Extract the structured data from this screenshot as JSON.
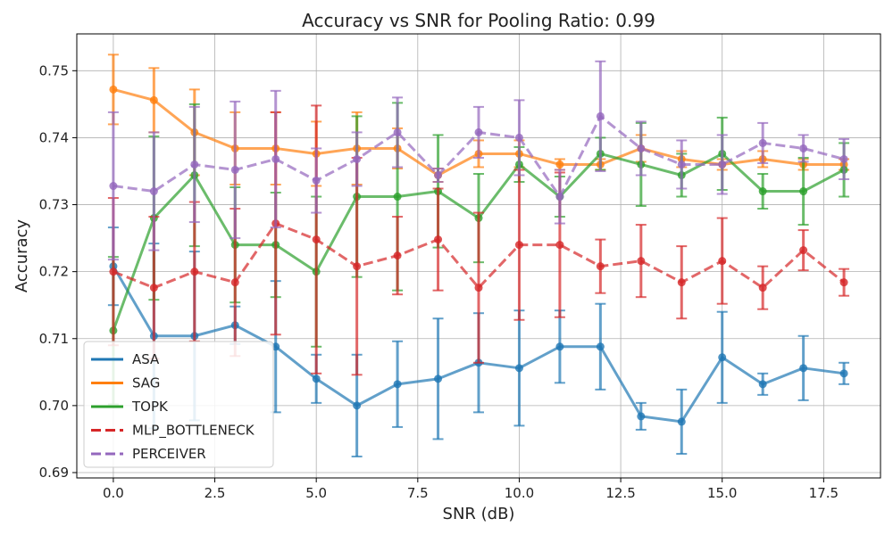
{
  "chart_data": {
    "type": "line",
    "title": "Accuracy vs SNR for Pooling Ratio: 0.99",
    "xlabel": "SNR (dB)",
    "ylabel": "Accuracy",
    "xlim": [
      -0.9,
      18.9
    ],
    "ylim": [
      0.6892,
      0.7555
    ],
    "xticks": [
      0.0,
      2.5,
      5.0,
      7.5,
      10.0,
      12.5,
      15.0,
      17.5
    ],
    "xtick_labels": [
      "0.0",
      "2.5",
      "5.0",
      "7.5",
      "10.0",
      "12.5",
      "15.0",
      "17.5"
    ],
    "yticks": [
      0.69,
      0.7,
      0.71,
      0.72,
      0.73,
      0.74,
      0.75
    ],
    "ytick_labels": [
      "0.69",
      "0.70",
      "0.71",
      "0.72",
      "0.73",
      "0.74",
      "0.75"
    ],
    "grid": true,
    "legend_position": "lower-left",
    "x": [
      0,
      1,
      2,
      3,
      4,
      5,
      6,
      7,
      8,
      9,
      10,
      11,
      12,
      13,
      14,
      15,
      16,
      17,
      18
    ],
    "series": [
      {
        "name": "ASA",
        "color": "#1f77b4",
        "dashed": false,
        "values": [
          0.7208,
          0.7104,
          0.7104,
          0.712,
          0.7088,
          0.704,
          0.7,
          0.7032,
          0.704,
          0.7064,
          0.7056,
          0.7088,
          0.7088,
          0.6984,
          0.6976,
          0.7072,
          0.7032,
          0.7056,
          0.7048
        ],
        "errors": [
          0.0058,
          0.0138,
          0.0126,
          0.0028,
          0.0098,
          0.0036,
          0.0076,
          0.0064,
          0.009,
          0.0074,
          0.0086,
          0.0054,
          0.0064,
          0.002,
          0.0048,
          0.0068,
          0.0016,
          0.0048,
          0.0016
        ]
      },
      {
        "name": "SAG",
        "color": "#ff7f0e",
        "dashed": false,
        "values": [
          0.7472,
          0.7456,
          0.7408,
          0.7384,
          0.7384,
          0.7376,
          0.7384,
          0.7384,
          0.7344,
          0.7376,
          0.7376,
          0.736,
          0.736,
          0.7384,
          0.7368,
          0.736,
          0.7368,
          0.736,
          0.736
        ],
        "errors": [
          0.0052,
          0.0048,
          0.0064,
          0.0054,
          0.0054,
          0.0048,
          0.0054,
          0.003,
          0.001,
          0.002,
          0.002,
          0.0008,
          0.0008,
          0.002,
          0.0012,
          0.0008,
          0.0012,
          0.0008,
          0.0008
        ]
      },
      {
        "name": "TOPK",
        "color": "#2ca02c",
        "dashed": false,
        "values": [
          0.7112,
          0.728,
          0.7344,
          0.724,
          0.724,
          0.72,
          0.7312,
          0.7312,
          0.732,
          0.728,
          0.736,
          0.7312,
          0.7376,
          0.736,
          0.7344,
          0.7376,
          0.732,
          0.732,
          0.7352
        ],
        "errors": [
          0.011,
          0.0122,
          0.0106,
          0.0086,
          0.0078,
          0.0112,
          0.012,
          0.014,
          0.0084,
          0.0066,
          0.0026,
          0.003,
          0.0024,
          0.0062,
          0.0032,
          0.0054,
          0.0026,
          0.005,
          0.004
        ]
      },
      {
        "name": "MLP_BOTTLENECK",
        "color": "#d62728",
        "dashed": true,
        "values": [
          0.72,
          0.7176,
          0.72,
          0.7184,
          0.7272,
          0.7248,
          0.7208,
          0.7224,
          0.7248,
          0.7176,
          0.724,
          0.724,
          0.7208,
          0.7216,
          0.7184,
          0.7216,
          0.7176,
          0.7232,
          0.7184
        ],
        "errors": [
          0.011,
          0.0106,
          0.0104,
          0.011,
          0.0166,
          0.02,
          0.0162,
          0.0058,
          0.0076,
          0.0112,
          0.0112,
          0.0108,
          0.004,
          0.0054,
          0.0054,
          0.0064,
          0.0032,
          0.003,
          0.002
        ]
      },
      {
        "name": "PERCEIVER",
        "color": "#9467bd",
        "dashed": true,
        "values": [
          0.7328,
          0.732,
          0.736,
          0.7352,
          0.7368,
          0.7336,
          0.7368,
          0.7408,
          0.7344,
          0.7408,
          0.74,
          0.7312,
          0.7432,
          0.7384,
          0.736,
          0.736,
          0.7392,
          0.7384,
          0.7368
        ],
        "errors": [
          0.011,
          0.0088,
          0.0086,
          0.0102,
          0.0102,
          0.0048,
          0.004,
          0.0052,
          0.001,
          0.0038,
          0.0056,
          0.004,
          0.0082,
          0.004,
          0.0036,
          0.0044,
          0.003,
          0.002,
          0.003
        ]
      }
    ]
  }
}
